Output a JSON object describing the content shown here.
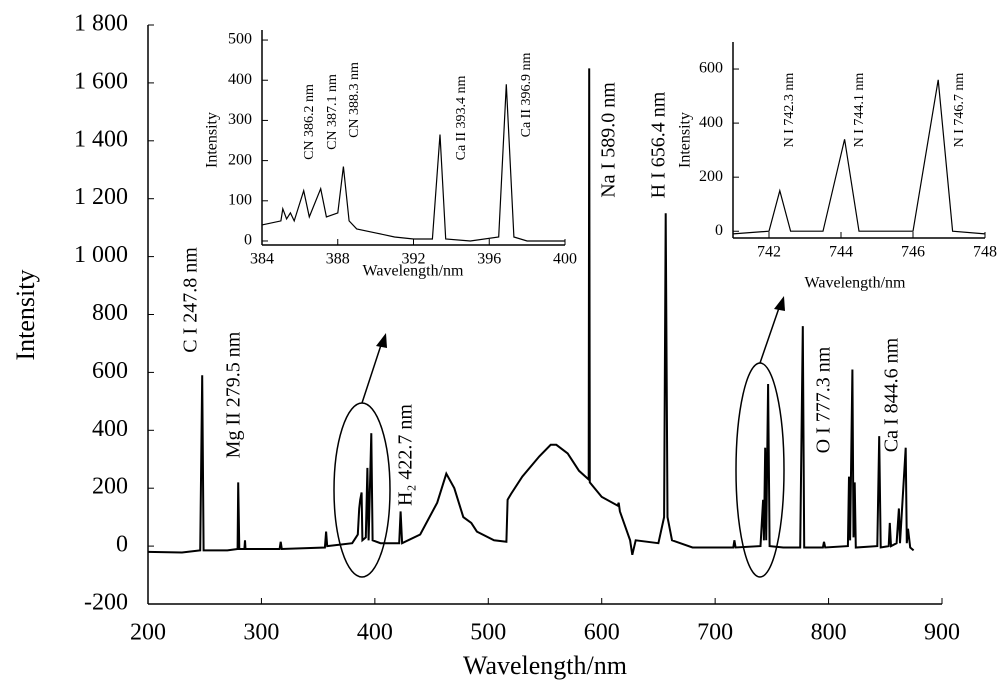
{
  "chart_data": [
    {
      "type": "line",
      "xlabel": "Wavelength/nm",
      "ylabel": "Intensity",
      "xlim": [
        200,
        900
      ],
      "xticks": [
        200,
        300,
        400,
        500,
        600,
        700,
        800,
        900
      ],
      "ylim": [
        -200,
        1800
      ],
      "yticks": [
        -200,
        0,
        200,
        400,
        600,
        800,
        {
          "value": 1000,
          "label": "1 000"
        },
        {
          "value": 1200,
          "label": "1 200"
        },
        {
          "value": 1400,
          "label": "1 400"
        },
        {
          "value": 1600,
          "label": "1 600"
        },
        {
          "value": 1800,
          "label": "1 800"
        }
      ],
      "annotations": [
        "C I 247.8 nm",
        "Mg II 279.5 nm",
        "H₂ 422.7 nm",
        "Na I 589.0 nm",
        "H I 656.4 nm",
        "O I 777.3 nm",
        "Ca I 844.6 nm"
      ],
      "series": [
        {
          "color": "#000000",
          "x": [
            200,
            230,
            246,
            247.8,
            249,
            270,
            279,
            279.5,
            280.5,
            285,
            285.5,
            286,
            316,
            317,
            318,
            356,
            357,
            358,
            380,
            385,
            386.2,
            387.1,
            388.3,
            389,
            392,
            393.4,
            394.5,
            396.9,
            398,
            405,
            421.5,
            422.7,
            424,
            440,
            455,
            463,
            470,
            478,
            485,
            490,
            505,
            516,
            517,
            520,
            530,
            545,
            555,
            560,
            570,
            580,
            588.5,
            589.0,
            589.5,
            600,
            614,
            615,
            616,
            625,
            627,
            630,
            650,
            655,
            656.4,
            658,
            662,
            680,
            716,
            717,
            718,
            740,
            742.3,
            743,
            744.1,
            745,
            746.7,
            748,
            760,
            775,
            777.3,
            778.5,
            795,
            796,
            797,
            817,
            818,
            819,
            821,
            822,
            823,
            824,
            843,
            844.6,
            846,
            853,
            854,
            855,
            860,
            862,
            863,
            868,
            869,
            870,
            872,
            875
          ],
          "values": [
            -20,
            -22,
            -15,
            590,
            -15,
            -15,
            -10,
            220,
            -10,
            -10,
            20,
            -10,
            -10,
            15,
            -10,
            -5,
            50,
            0,
            10,
            40,
            130,
            160,
            185,
            20,
            30,
            270,
            20,
            390,
            20,
            10,
            10,
            120,
            10,
            40,
            150,
            250,
            200,
            100,
            80,
            50,
            20,
            15,
            160,
            180,
            240,
            310,
            350,
            350,
            320,
            260,
            230,
            1650,
            220,
            170,
            140,
            150,
            120,
            20,
            -30,
            20,
            10,
            100,
            1150,
            100,
            20,
            -5,
            -5,
            20,
            -5,
            0,
            160,
            20,
            340,
            20,
            560,
            0,
            -5,
            -5,
            760,
            -5,
            -5,
            15,
            -5,
            0,
            240,
            20,
            610,
            30,
            220,
            -5,
            0,
            380,
            -5,
            0,
            80,
            0,
            10,
            130,
            10,
            340,
            10,
            60,
            -5,
            -15
          ]
        }
      ]
    },
    {
      "type": "line",
      "xlabel": "Wavelength/nm",
      "ylabel": "Intensity",
      "xlim": [
        384,
        400
      ],
      "xticks": [
        384,
        388,
        392,
        396,
        400
      ],
      "ylim": [
        -10,
        525
      ],
      "yticks": [
        0,
        100,
        200,
        300,
        400,
        500
      ],
      "annotations": [
        "CN 386.2 nm",
        "CN 387.1 nm",
        "CN 388.3 nm",
        "Ca II 393.4 nm",
        "Ca II 396.9 nm"
      ],
      "series": [
        {
          "color": "#000000",
          "x": [
            384,
            385,
            385.1,
            385.3,
            385.5,
            385.7,
            386.2,
            386.5,
            387.1,
            387.4,
            388.0,
            388.3,
            388.6,
            389,
            390,
            391,
            392,
            393,
            393.4,
            393.7,
            395,
            396.5,
            396.9,
            397.3,
            398,
            400
          ],
          "values": [
            40,
            50,
            80,
            55,
            70,
            50,
            125,
            60,
            130,
            60,
            70,
            185,
            50,
            30,
            20,
            10,
            5,
            5,
            265,
            5,
            0,
            10,
            390,
            10,
            0,
            0
          ]
        }
      ]
    },
    {
      "type": "line",
      "xlabel": "Wavelength/nm",
      "ylabel": "Intensity",
      "xlim": [
        741,
        748
      ],
      "xticks": [
        742,
        744,
        746,
        748
      ],
      "ylim": [
        -25,
        700
      ],
      "yticks": [
        0,
        200,
        400,
        600
      ],
      "annotations": [
        "N I 742.3 nm",
        "N I 744.1 nm",
        "N I 746.7 nm"
      ],
      "series": [
        {
          "color": "#000000",
          "x": [
            741,
            742,
            742.3,
            742.6,
            743.5,
            744.1,
            744.5,
            746,
            746.7,
            747.1,
            748
          ],
          "values": [
            -10,
            0,
            150,
            0,
            0,
            340,
            0,
            0,
            560,
            0,
            -10
          ]
        }
      ]
    }
  ]
}
